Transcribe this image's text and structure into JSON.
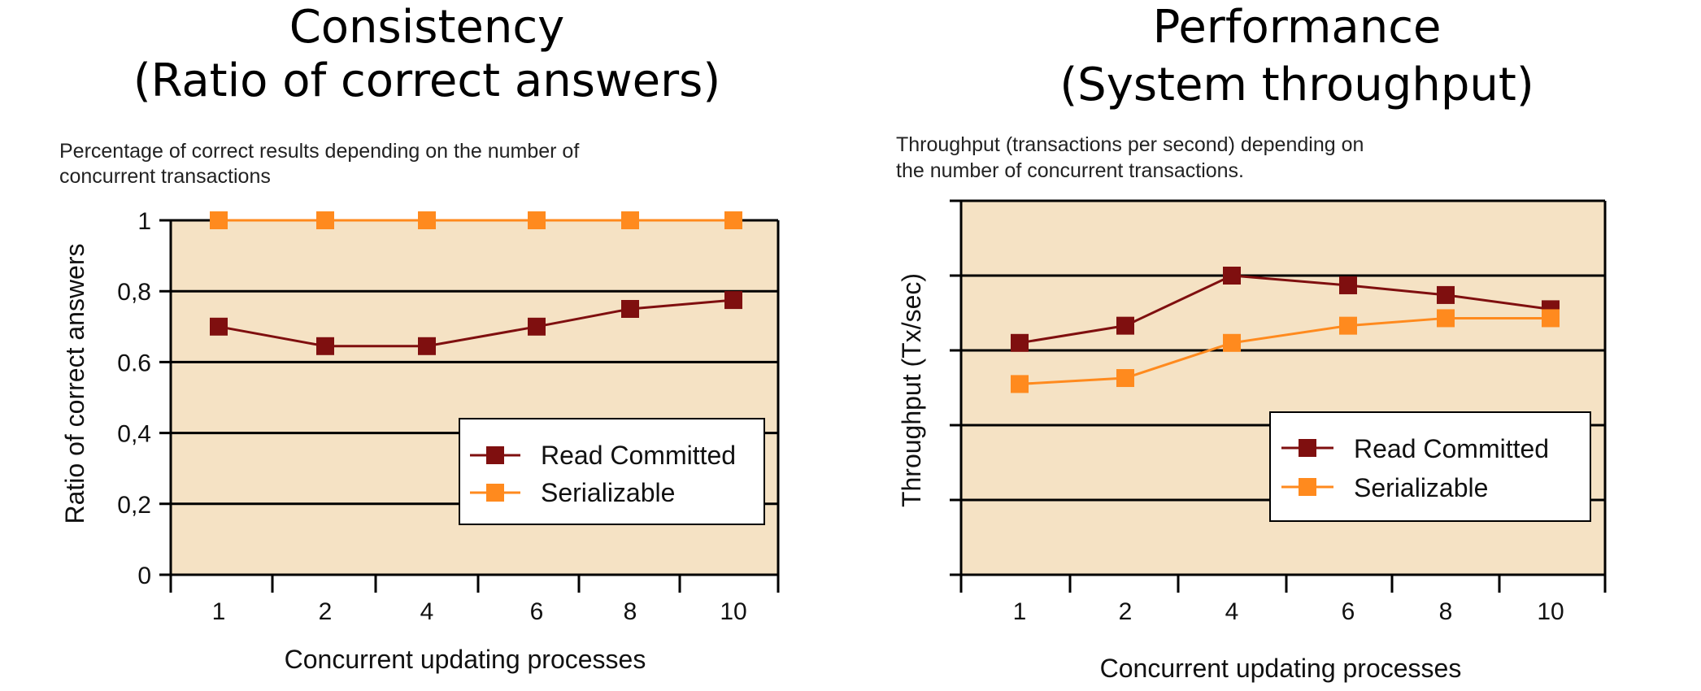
{
  "colors": {
    "plot_background": "#f5e2c4",
    "read_committed": "#7f0f0f",
    "serializable": "#ff8a1e",
    "gridline": "#000000"
  },
  "chart_data": [
    {
      "type": "line",
      "title_lines": [
        "Consistency",
        "(Ratio of correct answers)"
      ],
      "subtitle_lines": [
        "Percentage of correct results depending on the number of",
        "concurrent transactions"
      ],
      "xlabel": "Concurrent updating processes",
      "ylabel": "Ratio of correct answers",
      "categories": [
        "1",
        "2",
        "4",
        "6",
        "8",
        "10"
      ],
      "ylim": [
        0,
        1
      ],
      "yticks": [
        {
          "value": 0,
          "label": "0"
        },
        {
          "value": 0.2,
          "label": "0,2"
        },
        {
          "value": 0.4,
          "label": "0,4"
        },
        {
          "value": 0.6,
          "label": "0.6"
        },
        {
          "value": 0.8,
          "label": "0,8"
        },
        {
          "value": 1,
          "label": "1"
        }
      ],
      "grid": true,
      "legend_position": "bottom-right",
      "series": [
        {
          "name": "Read Committed",
          "color": "read_committed",
          "values": [
            0.7,
            0.645,
            0.645,
            0.7,
            0.75,
            0.775
          ]
        },
        {
          "name": "Serializable",
          "color": "serializable",
          "values": [
            1.0,
            1.0,
            1.0,
            1.0,
            1.0,
            1.0
          ]
        }
      ]
    },
    {
      "type": "line",
      "title_lines": [
        "Performance",
        "(System throughput)"
      ],
      "subtitle_lines": [
        "Throughput (transactions per second) depending on",
        "the number of concurrent transactions."
      ],
      "xlabel": "Concurrent updating processes",
      "ylabel": "Throughput (Tx/sec)",
      "categories": [
        "1",
        "2",
        "4",
        "6",
        "8",
        "10"
      ],
      "ylim": [
        0,
        5
      ],
      "yticks": [
        {
          "value": 0,
          "label": ""
        },
        {
          "value": 1,
          "label": ""
        },
        {
          "value": 2,
          "label": ""
        },
        {
          "value": 3,
          "label": ""
        },
        {
          "value": 4,
          "label": ""
        },
        {
          "value": 5,
          "label": ""
        }
      ],
      "grid": true,
      "legend_position": "bottom-right",
      "series": [
        {
          "name": "Read Committed",
          "color": "read_committed",
          "values": [
            3.1,
            3.33,
            4.0,
            3.87,
            3.74,
            3.55
          ]
        },
        {
          "name": "Serializable",
          "color": "serializable",
          "values": [
            2.55,
            2.63,
            3.1,
            3.33,
            3.43,
            3.43
          ]
        }
      ]
    }
  ]
}
